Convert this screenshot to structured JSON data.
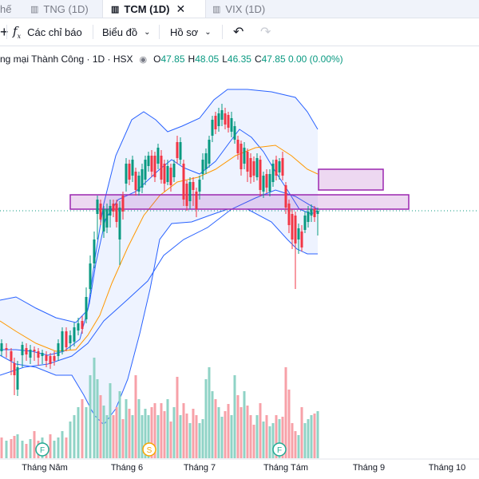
{
  "tabs": [
    {
      "label": "hế",
      "icon": ""
    },
    {
      "label": "TNG (1D)",
      "icon": "candles-icon"
    },
    {
      "label": "TCM (1D)",
      "icon": "candles-icon",
      "active": true
    },
    {
      "label": "VIX (1D)",
      "icon": "candles-icon"
    }
  ],
  "tab_close": "✕",
  "toolbar": {
    "plus": "+",
    "indicators": "Các chỉ báo",
    "chart_type": "Biểu đồ",
    "templates": "Hồ sơ",
    "undo": "↶",
    "redo": "↷"
  },
  "legend": {
    "title": "ng mại Thành Công · 1D · HSX",
    "open_k": "O",
    "open_v": "47.85",
    "high_k": "H",
    "high_v": "48.05",
    "low_k": "L",
    "low_v": "46.35",
    "close_k": "C",
    "close_v": "47.85 0.00 (0.00%)"
  },
  "time_axis": [
    "Tháng Năm",
    "Tháng 6",
    "Tháng 7",
    "Tháng Tám",
    "Tháng 9",
    "Tháng 10"
  ],
  "markers": [
    {
      "letter": "F",
      "color": "#22ab94"
    },
    {
      "letter": "S",
      "color": "#f7a600"
    },
    {
      "letter": "F",
      "color": "#22ab94"
    }
  ],
  "colors": {
    "up": "#089981",
    "down": "#f23645",
    "up_vol": "#8fd3c6",
    "down_vol": "#f7a1a8",
    "band": "#2962ff",
    "ma": "#ff9800",
    "zone": "#9c27b0"
  },
  "chart_data": {
    "type": "candlestick",
    "title": "TCM (1D)",
    "ohlc_last": {
      "open": 47.85,
      "high": 48.05,
      "low": 46.35,
      "close": 47.85,
      "change": 0.0,
      "change_pct": 0.0
    }
  }
}
